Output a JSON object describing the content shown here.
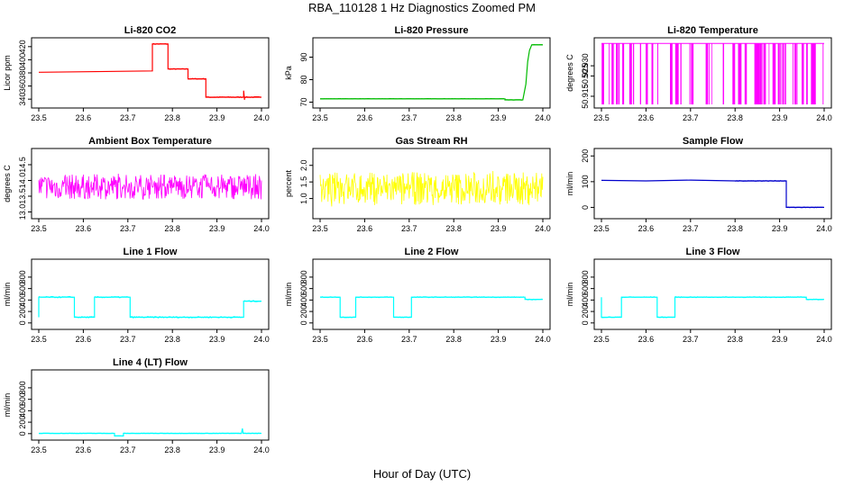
{
  "figure": {
    "title": "RBA_110128  1 Hz Diagnostics Zoomed PM",
    "xlabel": "Hour of Day (UTC)"
  },
  "chart_data": [
    {
      "type": "line",
      "title": "Li-820 CO2",
      "ylabel": "Licor ppm",
      "color": "#ff0000",
      "xlim": [
        23.5,
        24.0
      ],
      "ylim": [
        332,
        428
      ],
      "yticks": [
        "340",
        "360",
        "380",
        "400",
        "420"
      ],
      "xticks": [
        "23.5",
        "23.6",
        "23.7",
        "23.8",
        "23.9",
        "24.0"
      ],
      "noise": 0.6,
      "x": [
        23.5,
        23.755,
        23.755,
        23.79,
        23.79,
        23.835,
        23.835,
        23.875,
        23.875,
        23.96,
        23.96,
        23.962,
        23.962,
        24.0
      ],
      "y": [
        381,
        383,
        424,
        424,
        386,
        386,
        371,
        371,
        343,
        343,
        353,
        339,
        343,
        343
      ]
    },
    {
      "type": "line",
      "title": "Li-820 Pressure",
      "ylabel": "kPa",
      "color": "#00bb00",
      "xlim": [
        23.5,
        24.0
      ],
      "ylim": [
        69,
        97
      ],
      "yticks": [
        "70",
        "80",
        "90"
      ],
      "xticks": [
        "23.5",
        "23.6",
        "23.7",
        "23.8",
        "23.9",
        "24.0"
      ],
      "noise": 0.05,
      "x": [
        23.5,
        23.915,
        23.915,
        23.955,
        23.962,
        23.966,
        23.97,
        23.975,
        23.985,
        24.0
      ],
      "y": [
        71.5,
        71.5,
        71,
        71,
        78,
        88,
        93,
        95.5,
        95.5,
        95.5
      ]
    },
    {
      "type": "line",
      "title": "Li-820 Temperature",
      "ylabel": "degrees C",
      "color": "#ff00ff",
      "xlim": [
        23.5,
        24.0
      ],
      "ylim": [
        50.911,
        50.942
      ],
      "yticks": [
        "50.915",
        "50.925",
        "50.930"
      ],
      "xticks": [
        "23.5",
        "23.6",
        "23.7",
        "23.8",
        "23.9",
        "24.0"
      ],
      "noise": 0,
      "x": [
        23.5,
        24.0
      ],
      "y": [
        50.941,
        50.941
      ]
    },
    {
      "type": "line",
      "title": "Ambient Box Temperature",
      "ylabel": "degrees C",
      "color": "#ff00ff",
      "xlim": [
        23.5,
        24.0
      ],
      "ylim": [
        12.9,
        14.9
      ],
      "yticks": [
        "13.0",
        "13.5",
        "14.0",
        "14.5"
      ],
      "xticks": [
        "23.5",
        "23.6",
        "23.7",
        "23.8",
        "23.9",
        "24.0"
      ],
      "noise": 0.4,
      "x": [
        23.5,
        24.0
      ],
      "y": [
        13.8,
        13.8
      ]
    },
    {
      "type": "line",
      "title": "Gas Stream RH",
      "ylabel": "percent",
      "color": "#ffff00",
      "xlim": [
        23.5,
        24.0
      ],
      "ylim": [
        0.5,
        2.4
      ],
      "yticks": [
        "1.0",
        "1.5",
        "2.0"
      ],
      "xticks": [
        "23.5",
        "23.6",
        "23.7",
        "23.8",
        "23.9",
        "24.0"
      ],
      "noise": 0.5,
      "x": [
        23.5,
        24.0
      ],
      "y": [
        1.3,
        1.3
      ]
    },
    {
      "type": "line",
      "title": "Sample Flow",
      "ylabel": "ml/min",
      "color": "#0000cc",
      "xlim": [
        23.5,
        24.0
      ],
      "ylim": [
        -30,
        215
      ],
      "yticks": [
        "0",
        "100",
        "200"
      ],
      "xticks": [
        "23.5",
        "23.6",
        "23.7",
        "23.8",
        "23.9",
        "24.0"
      ],
      "noise": 1,
      "x": [
        23.5,
        23.6,
        23.7,
        23.8,
        23.915,
        23.915,
        24.0
      ],
      "y": [
        105,
        103,
        106,
        103,
        103,
        0,
        0
      ]
    },
    {
      "type": "line",
      "title": "Line 1 Flow",
      "ylabel": "ml/min",
      "color": "#00ffff",
      "xlim": [
        23.5,
        24.0
      ],
      "ylim": [
        -50,
        1050
      ],
      "yticks": [
        "0",
        "200",
        "400",
        "600",
        "800"
      ],
      "xticks": [
        "23.5",
        "23.6",
        "23.7",
        "23.8",
        "23.9",
        "24.0"
      ],
      "noise": 10,
      "x": [
        23.5,
        23.5,
        23.58,
        23.58,
        23.625,
        23.625,
        23.705,
        23.705,
        23.96,
        23.96,
        24.0
      ],
      "y": [
        100,
        450,
        450,
        100,
        100,
        450,
        450,
        100,
        100,
        380,
        380
      ]
    },
    {
      "type": "line",
      "title": "Line 2 Flow",
      "ylabel": "ml/min",
      "color": "#00ffff",
      "xlim": [
        23.5,
        24.0
      ],
      "ylim": [
        -50,
        1050
      ],
      "yticks": [
        "0",
        "200",
        "400",
        "600",
        "800"
      ],
      "xticks": [
        "23.5",
        "23.6",
        "23.7",
        "23.8",
        "23.9",
        "24.0"
      ],
      "noise": 6,
      "x": [
        23.5,
        23.545,
        23.545,
        23.58,
        23.58,
        23.665,
        23.665,
        23.705,
        23.705,
        23.96,
        23.96,
        24.0
      ],
      "y": [
        450,
        450,
        100,
        100,
        450,
        450,
        100,
        100,
        450,
        450,
        410,
        410
      ]
    },
    {
      "type": "line",
      "title": "Line 3 Flow",
      "ylabel": "ml/min",
      "color": "#00ffff",
      "xlim": [
        23.5,
        24.0
      ],
      "ylim": [
        -50,
        1050
      ],
      "yticks": [
        "0",
        "200",
        "400",
        "600",
        "800"
      ],
      "xticks": [
        "23.5",
        "23.6",
        "23.7",
        "23.8",
        "23.9",
        "24.0"
      ],
      "noise": 6,
      "x": [
        23.5,
        23.5,
        23.545,
        23.545,
        23.625,
        23.625,
        23.665,
        23.665,
        23.96,
        23.96,
        24.0
      ],
      "y": [
        450,
        100,
        100,
        450,
        450,
        100,
        100,
        450,
        450,
        410,
        410
      ]
    },
    {
      "type": "line",
      "title": "Line 4 (LT) Flow",
      "ylabel": "ml/min",
      "color": "#00ffff",
      "xlim": [
        23.5,
        24.0
      ],
      "ylim": [
        -50,
        1050
      ],
      "yticks": [
        "0",
        "200",
        "400",
        "600",
        "800"
      ],
      "xticks": [
        "23.5",
        "23.6",
        "23.7",
        "23.8",
        "23.9",
        "24.0"
      ],
      "noise": 3,
      "x": [
        23.5,
        23.67,
        23.67,
        23.69,
        23.69,
        23.955,
        23.957,
        23.959,
        24.0
      ],
      "y": [
        5,
        5,
        -40,
        -40,
        5,
        5,
        90,
        5,
        5
      ]
    }
  ]
}
